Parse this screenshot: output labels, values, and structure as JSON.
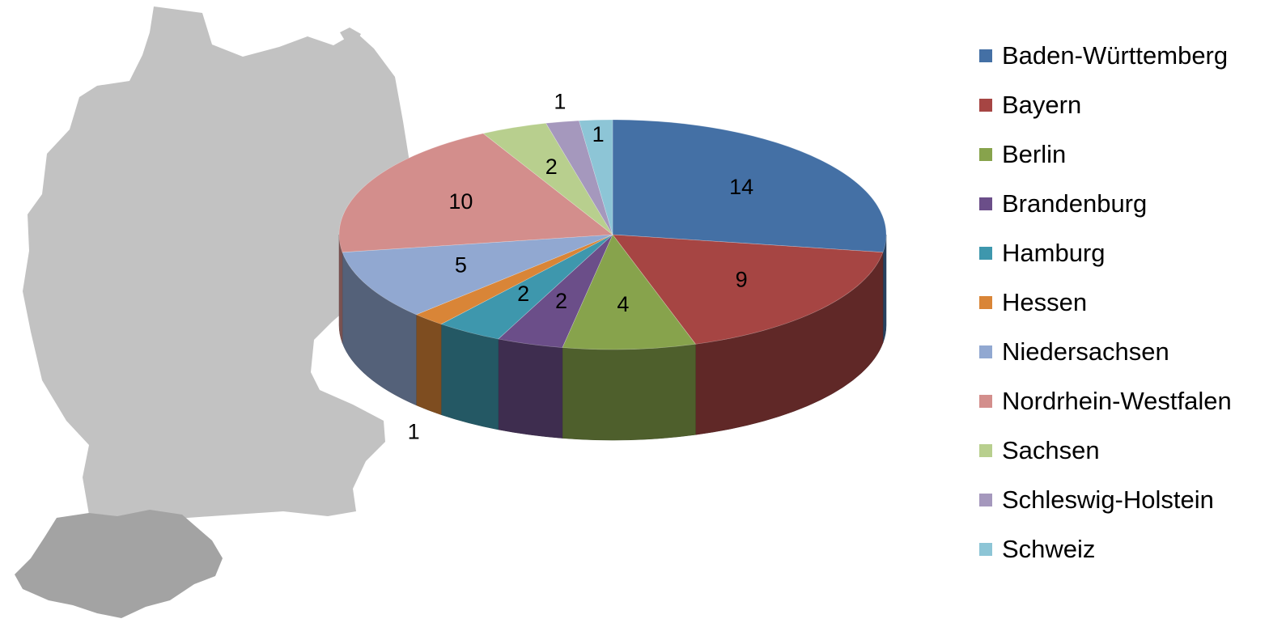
{
  "chart_data": {
    "type": "pie",
    "style": "3d",
    "categories": [
      "Baden-Württemberg",
      "Bayern",
      "Berlin",
      "Brandenburg",
      "Hamburg",
      "Hessen",
      "Niedersachsen",
      "Nordrhein-Westfalen",
      "Sachsen",
      "Schleswig-Holstein",
      "Schweiz"
    ],
    "values": [
      14,
      9,
      4,
      2,
      2,
      1,
      5,
      10,
      2,
      1,
      1
    ],
    "colors": [
      "#4470A5",
      "#A64543",
      "#87A34C",
      "#6B4E89",
      "#3E97AD",
      "#D98537",
      "#91A8D1",
      "#D38E8C",
      "#B8CF8E",
      "#A598BD",
      "#8DC5D6"
    ],
    "legend_position": "right",
    "data_labels": true,
    "background_image": "map-of-germany-and-switzerland"
  }
}
